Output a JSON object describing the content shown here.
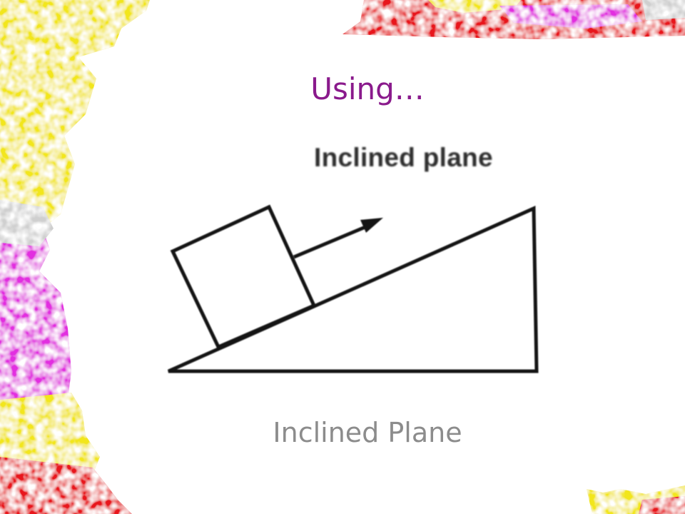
{
  "slide": {
    "title": "Using…",
    "diagram_label": "Inclined plane",
    "caption": "Inclined Plane"
  },
  "colors": {
    "title": "#8a1a8c",
    "caption": "#8c8c8c",
    "deco_yellow": "#f2e61c",
    "deco_red": "#e8181e",
    "deco_magenta": "#e22ee0"
  }
}
